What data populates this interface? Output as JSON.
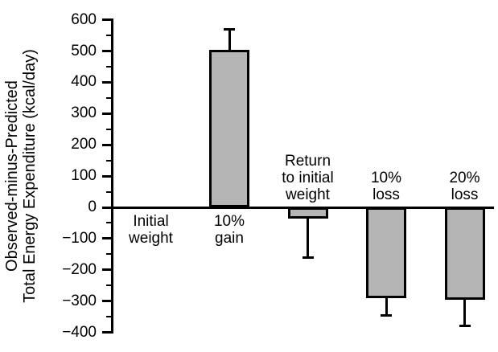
{
  "chart_data": {
    "type": "bar",
    "title": "",
    "xlabel": "",
    "ylabel_lines": [
      "Observed-minus-Predicted",
      "Total Energy Expenditure (kcal/day)"
    ],
    "ylabel": "Observed-minus-Predicted Total Energy Expenditure (kcal/day)",
    "categories": [
      "Initial weight",
      "10% gain",
      "Return to initial weight",
      "10% loss",
      "20% loss"
    ],
    "values": [
      0,
      505,
      -35,
      -290,
      -295
    ],
    "error_whisker_ends": [
      null,
      570,
      -160,
      -345,
      -380
    ],
    "label_lines": [
      [
        "Initial",
        "weight"
      ],
      [
        "10%",
        "gain"
      ],
      [
        "Return",
        "to initial",
        "weight"
      ],
      [
        "10%",
        "loss"
      ],
      [
        "20%",
        "loss"
      ]
    ],
    "label_positions": [
      "below",
      "below",
      "above",
      "above",
      "above"
    ],
    "ylim": [
      -400,
      600
    ],
    "major_tick_step": 100,
    "minor_tick_step": 50,
    "grid": false,
    "legend": "none",
    "bar_fill": "#b5b5b5",
    "bar_border": "#000000",
    "axis_color": "#000000"
  }
}
